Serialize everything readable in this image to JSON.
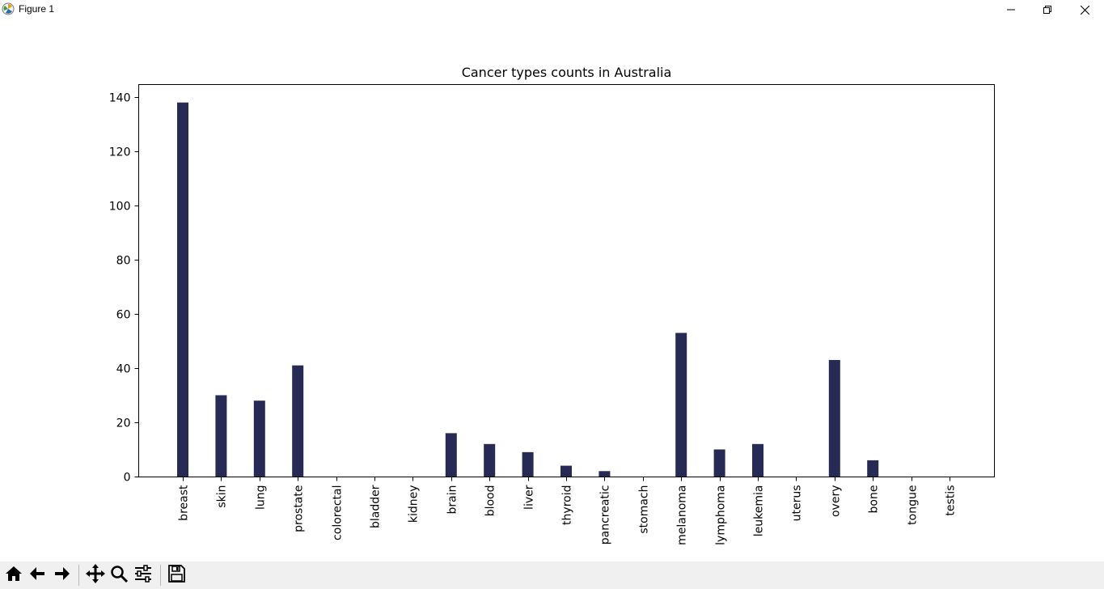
{
  "window": {
    "title": "Figure 1",
    "icons": {
      "app": "matplotlib-icon",
      "minimize": "minimize-icon",
      "restore": "restore-icon",
      "close": "close-icon"
    }
  },
  "toolbar": {
    "buttons": [
      {
        "name": "home-button",
        "icon": "home-icon"
      },
      {
        "name": "back-button",
        "icon": "arrow-left-icon"
      },
      {
        "name": "forward-button",
        "icon": "arrow-right-icon"
      },
      {
        "name": "pan-button",
        "icon": "move-icon"
      },
      {
        "name": "zoom-button",
        "icon": "magnifier-icon"
      },
      {
        "name": "configure-subplots-button",
        "icon": "sliders-icon"
      },
      {
        "name": "save-button",
        "icon": "floppy-disk-icon"
      }
    ]
  },
  "chart_data": {
    "type": "bar",
    "title": "Cancer types counts in Australia",
    "xlabel": "",
    "ylabel": "",
    "categories": [
      "breast",
      "skin",
      "lung",
      "prostate",
      "colorectal",
      "bladder",
      "kidney",
      "brain",
      "blood",
      "liver",
      "thyroid",
      "pancreatic",
      "stomach",
      "melanoma",
      "lymphoma",
      "leukemia",
      "uterus",
      "overy",
      "bone",
      "tongue",
      "testis"
    ],
    "values": [
      138,
      30,
      28,
      41,
      0,
      0,
      0,
      16,
      12,
      9,
      4,
      2,
      0,
      53,
      10,
      12,
      0,
      43,
      6,
      0,
      0
    ],
    "ylim": [
      0,
      145
    ],
    "yticks": [
      0,
      20,
      40,
      60,
      80,
      100,
      120,
      140
    ],
    "bar_color": "#272a55",
    "grid": false,
    "x_tick_rotation": 90
  }
}
